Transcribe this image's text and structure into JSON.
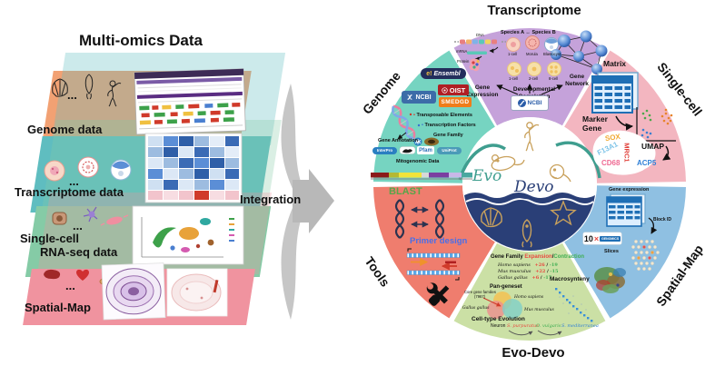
{
  "left_panel": {
    "title": "Multi-omics Data",
    "integration_label": "Integration",
    "layers": [
      {
        "label": "Genome data",
        "dots": "...",
        "color": "#f2a173"
      },
      {
        "label": "Transcriptome data",
        "dots": "...",
        "color": "#5fbdc0"
      },
      {
        "label_line1": "Single-cell",
        "label_line2": "RNA-seq data",
        "dots": "...",
        "color": "#85cba6"
      },
      {
        "label": "Spatial-Map",
        "dots": "...",
        "color": "#f0939f"
      }
    ]
  },
  "wheel": {
    "center": {
      "evo": "Evo",
      "devo": "Devo"
    },
    "sections": [
      {
        "id": "transcriptome",
        "label": "Transcriptome",
        "color": "#c5a2da",
        "start": 61,
        "end": 119
      },
      {
        "id": "single-cell",
        "label": "Single-cell",
        "color": "#f3b6c0",
        "start": 1,
        "end": 59
      },
      {
        "id": "spatial-map",
        "label": "Spatial-Map",
        "color": "#8fc0e2",
        "start": -59,
        "end": -1
      },
      {
        "id": "evo-devo",
        "label": "Evo-Devo",
        "color": "#cbe0a5",
        "start": -119,
        "end": -61
      },
      {
        "id": "tools",
        "label": "Tools",
        "color": "#ef7d6e",
        "start": -179,
        "end": -121
      },
      {
        "id": "genome",
        "label": "Genome",
        "color": "#76d4c1",
        "start": 121,
        "end": 179
      }
    ]
  },
  "transcriptome": {
    "species_left": "Species A",
    "compare_arrow": "↔",
    "species_right": "Species B",
    "stages_top": [
      "1-cell",
      "Morula",
      "Blastocyst"
    ],
    "stages_bottom": [
      "1-cell",
      "2-cell",
      "8-cell"
    ],
    "dna": "DNA",
    "mrna": "mRNA",
    "protein": "Protein",
    "gene_expression_1": "Gene",
    "gene_expression_2": "Expression",
    "dev_corr_1": "Developmental",
    "dev_corr_2": "Correlation",
    "gene_network_1": "Gene",
    "gene_network_2": "Network",
    "ncbi": "NCBI"
  },
  "genome": {
    "ensembl_e": "e!",
    "ensembl": "Ensembl",
    "ncbi": "NCBI",
    "oist": "OIST",
    "smedgd": "SMEDGD",
    "bullet_marks": [
      "•",
      "•",
      ""
    ],
    "bullets": [
      "Transposable Elements",
      "Transcription Factors",
      "Gene Family"
    ],
    "gene_annotation": "Gene Annotation",
    "interpro": "InterPro",
    "pfam": "Pfam",
    "uniprot": "UniProt",
    "mitogenomic": "Mitogenomic Data"
  },
  "single_cell": {
    "matrix": "Matrix",
    "marker_1": "Marker",
    "marker_2": "Gene",
    "umap": "UMAP",
    "genes": [
      {
        "name": "SOX",
        "color": "#f0a830"
      },
      {
        "name": "F13A1",
        "color": "#7fc4e8"
      },
      {
        "name": "CD68",
        "color": "#ef6a93"
      },
      {
        "name": "MRC1",
        "color": "#e0403a"
      },
      {
        "name": "ACP5",
        "color": "#2f7fd6"
      }
    ]
  },
  "spatial_map": {
    "gene_expression": "Gene expression",
    "block_id": "Block ID",
    "tenx": "10",
    "tenx_x": "×",
    "genomics": "GENOMICS",
    "slices": "Slices"
  },
  "tools": {
    "blast": "BLAST",
    "blast_color": "#58a549",
    "primer": "Primer design",
    "primer_color": "#4a6fe8"
  },
  "evo_devo": {
    "gene_family": "Gene Family",
    "expansion": "Expansion",
    "slash": "/",
    "contraction": "Contraction",
    "expansion_color": "#e8483f",
    "contraction_color": "#3fae52",
    "species": [
      {
        "name": "Homo sapiens",
        "up": "+26",
        "down": "-19"
      },
      {
        "name": "Mus musculus",
        "up": "+22",
        "down": "-15"
      },
      {
        "name": "Gallus gallus",
        "up": "+6",
        "down": "-17"
      }
    ],
    "macrosynteny": "Macrosynteny",
    "pan_geneset": "Pan-geneset",
    "venn": {
      "core_1": "Core gene families",
      "core_2": "(7967)",
      "top": "Homo sapiens",
      "left": "Gallus gallus",
      "right": "Mus musculus"
    },
    "cell_type": "Cell-type Evolution",
    "evolution": {
      "start": "Neuron",
      "s1": "S. purpuratus",
      "s1_color": "#e8483f",
      "s2": "O. vulgaris",
      "s2_color": "#3fae52",
      "s3": "S. mediterranea",
      "s3_color": "#2f7fd6"
    }
  }
}
